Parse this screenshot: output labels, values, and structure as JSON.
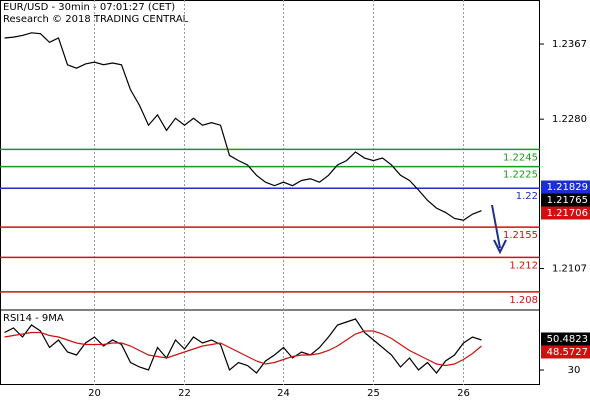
{
  "chart_data": {
    "type": "line",
    "title": "EUR/USD - 30min - 07:01:27 (CET)",
    "subtitle": "Research © 2018 TRADING CENTRAL",
    "categories": [
      null,
      null,
      null,
      null,
      null,
      null,
      null,
      null,
      null,
      null,
      "20",
      null,
      null,
      null,
      null,
      null,
      null,
      null,
      null,
      null,
      "22",
      null,
      null,
      null,
      null,
      null,
      null,
      null,
      null,
      null,
      null,
      "24",
      null,
      null,
      null,
      null,
      null,
      null,
      null,
      null,
      null,
      "25",
      null,
      null,
      null,
      null,
      null,
      null,
      null,
      null,
      null,
      "26",
      null,
      null
    ],
    "ylim": [
      1.2059,
      1.2418
    ],
    "yticks": [
      1.2367,
      {
        "value": 1.228,
        "label": "1.2280"
      },
      1.2107
    ],
    "series": [
      {
        "name": "EUR/USD",
        "color": "#000000",
        "values": [
          1.2374,
          1.2375,
          1.2377,
          1.238,
          1.2379,
          1.2369,
          1.2374,
          1.2343,
          1.2339,
          1.2344,
          1.2346,
          1.2343,
          1.2345,
          1.2343,
          1.2314,
          1.2296,
          1.2273,
          1.2285,
          1.2267,
          1.2281,
          1.2273,
          1.2281,
          1.2273,
          1.2276,
          1.2273,
          1.2238,
          1.2232,
          1.2227,
          1.2215,
          1.2207,
          1.2203,
          1.2207,
          1.2203,
          1.2209,
          1.2211,
          1.2207,
          1.2215,
          1.2227,
          1.2232,
          1.2242,
          1.2235,
          1.2232,
          1.2235,
          1.2227,
          1.2215,
          1.2209,
          1.2198,
          1.2186,
          1.2177,
          1.2172,
          1.2165,
          1.2163,
          1.217,
          1.2174
        ]
      }
    ],
    "levels": [
      {
        "value": 1.2245,
        "color": "#1a9a1a"
      },
      {
        "value": 1.2225,
        "color": "#1a9a1a"
      },
      {
        "value": 1.22,
        "color": "#1c2fcf"
      },
      {
        "value": 1.2155,
        "color": "#d01010"
      },
      {
        "value": 1.212,
        "color": "#d01010"
      },
      {
        "value": 1.208,
        "color": "#d01010"
      }
    ],
    "price_tags": [
      {
        "label": "1.21829",
        "color": "#1c2fcf"
      },
      {
        "label": "1.21765",
        "color": "#000000"
      },
      {
        "label": "1.21706",
        "color": "#d01010"
      }
    ],
    "rsi": {
      "title": "RSI14 - 9MA",
      "ylim": [
        20,
        70
      ],
      "yticks": [
        30
      ],
      "series": [
        {
          "name": "RSI14",
          "color": "#000000",
          "values": [
            55,
            58,
            52,
            60,
            56,
            45,
            50,
            42,
            40,
            48,
            52,
            46,
            50,
            47,
            35,
            32,
            30,
            45,
            38,
            50,
            44,
            52,
            48,
            50,
            47,
            30,
            35,
            33,
            28,
            36,
            40,
            45,
            38,
            42,
            40,
            45,
            52,
            60,
            62,
            64,
            55,
            50,
            45,
            40,
            32,
            38,
            30,
            35,
            28,
            36,
            40,
            48,
            52,
            50
          ]
        },
        {
          "name": "9MA",
          "color": "#d01010",
          "values": [
            52,
            53,
            54,
            55,
            55,
            53,
            52,
            50,
            48,
            47,
            47,
            47,
            48,
            48,
            46,
            43,
            40,
            39,
            38,
            40,
            42,
            44,
            46,
            47,
            48,
            45,
            42,
            39,
            36,
            34,
            35,
            37,
            39,
            40,
            40,
            41,
            43,
            46,
            50,
            54,
            56,
            56,
            54,
            51,
            47,
            43,
            40,
            37,
            34,
            33,
            34,
            37,
            41,
            46
          ]
        }
      ],
      "tags": [
        {
          "label": "50.4823",
          "color": "#000000"
        },
        {
          "label": "48.5727",
          "color": "#d01010"
        }
      ]
    }
  }
}
